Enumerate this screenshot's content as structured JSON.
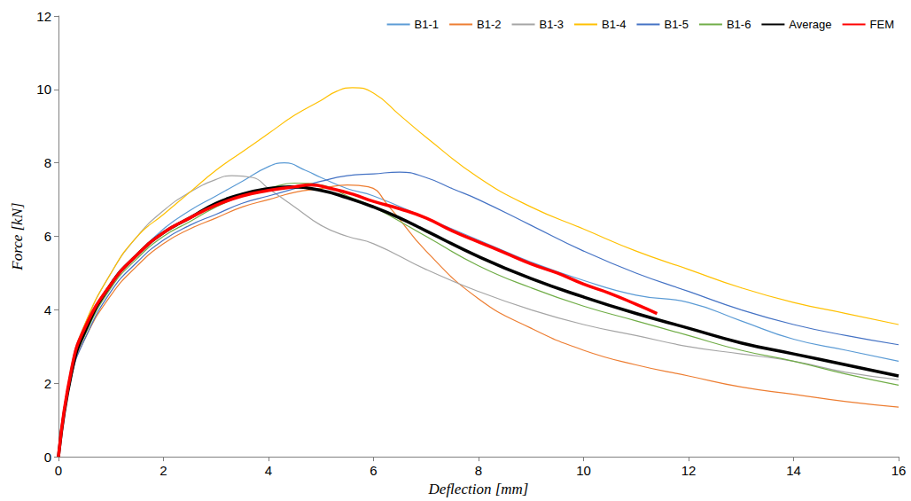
{
  "chart_data": {
    "type": "line",
    "x_label": "Deflection [mm]",
    "y_label": "Force [kN]",
    "xlim": [
      0,
      16
    ],
    "xticks": [
      0,
      2,
      4,
      6,
      8,
      10,
      12,
      14,
      16
    ],
    "ylim": [
      0,
      12
    ],
    "yticks": [
      0,
      2,
      4,
      6,
      8,
      10,
      12
    ],
    "grid": false,
    "legend": "top-right",
    "series": [
      {
        "name": "B1-1",
        "color": "#5b9bd5",
        "x": [
          0,
          0.25,
          0.5,
          1,
          1.5,
          2,
          2.5,
          3,
          3.5,
          4,
          4.3,
          4.7,
          5,
          5.5,
          6,
          7,
          8,
          9,
          10,
          11,
          12,
          13,
          14,
          15,
          16
        ],
        "values": [
          0,
          2.3,
          3.4,
          4.7,
          5.5,
          6.2,
          6.7,
          7.1,
          7.5,
          7.9,
          8.0,
          7.8,
          7.6,
          7.3,
          7.1,
          6.5,
          5.9,
          5.3,
          4.8,
          4.4,
          4.2,
          3.7,
          3.2,
          2.9,
          2.6
        ]
      },
      {
        "name": "B1-2",
        "color": "#ed7d31",
        "x": [
          0,
          0.25,
          0.5,
          1,
          1.5,
          2,
          2.5,
          3,
          3.5,
          4,
          4.5,
          5,
          5.5,
          5.9,
          6.3,
          7,
          8,
          9,
          10,
          11,
          12,
          13,
          14,
          15,
          16
        ],
        "values": [
          0,
          2.2,
          3.2,
          4.4,
          5.2,
          5.8,
          6.2,
          6.5,
          6.8,
          7.0,
          7.2,
          7.3,
          7.4,
          7.35,
          6.8,
          5.6,
          4.3,
          3.5,
          2.9,
          2.5,
          2.2,
          1.9,
          1.7,
          1.5,
          1.35
        ]
      },
      {
        "name": "B1-3",
        "color": "#a5a5a5",
        "x": [
          0,
          0.25,
          0.5,
          1,
          1.5,
          2,
          2.5,
          3,
          3.3,
          3.7,
          4,
          4.5,
          5,
          5.5,
          6,
          7,
          8,
          9,
          10,
          11,
          12,
          13,
          14,
          15,
          16
        ],
        "values": [
          0,
          2.5,
          3.6,
          5.0,
          6.0,
          6.7,
          7.2,
          7.55,
          7.65,
          7.6,
          7.3,
          6.8,
          6.3,
          6.0,
          5.8,
          5.1,
          4.5,
          4.0,
          3.6,
          3.3,
          3.0,
          2.8,
          2.6,
          2.3,
          2.1
        ]
      },
      {
        "name": "B1-4",
        "color": "#ffc000",
        "x": [
          0,
          0.25,
          0.5,
          1,
          1.5,
          2,
          2.5,
          3,
          3.5,
          4,
          4.5,
          5,
          5.3,
          5.6,
          6,
          6.5,
          7,
          8,
          9,
          10,
          11,
          12,
          13,
          14,
          15,
          16
        ],
        "values": [
          0,
          2.4,
          3.6,
          5.0,
          6.0,
          6.6,
          7.2,
          7.8,
          8.3,
          8.8,
          9.3,
          9.7,
          9.95,
          10.05,
          9.9,
          9.3,
          8.7,
          7.6,
          6.8,
          6.2,
          5.6,
          5.1,
          4.6,
          4.2,
          3.9,
          3.6
        ]
      },
      {
        "name": "B1-5",
        "color": "#4472c4",
        "x": [
          0,
          0.25,
          0.5,
          1,
          1.5,
          2,
          2.5,
          3,
          3.5,
          4,
          4.5,
          5,
          5.5,
          6,
          6.5,
          7,
          7.5,
          8,
          9,
          10,
          11,
          12,
          13,
          14,
          15,
          16
        ],
        "values": [
          0,
          2.2,
          3.2,
          4.5,
          5.3,
          5.9,
          6.3,
          6.6,
          6.9,
          7.1,
          7.3,
          7.5,
          7.65,
          7.7,
          7.75,
          7.6,
          7.3,
          7.0,
          6.3,
          5.6,
          5.0,
          4.5,
          4.0,
          3.6,
          3.3,
          3.05
        ]
      },
      {
        "name": "B1-6",
        "color": "#70ad47",
        "x": [
          0,
          0.25,
          0.5,
          1,
          1.5,
          2,
          2.5,
          3,
          3.5,
          4,
          4.5,
          5,
          5.5,
          6,
          7,
          8,
          9,
          10,
          11,
          12,
          13,
          14,
          15,
          16
        ],
        "values": [
          0,
          2.3,
          3.3,
          4.6,
          5.4,
          6.0,
          6.4,
          6.8,
          7.1,
          7.3,
          7.45,
          7.4,
          7.1,
          6.8,
          6.0,
          5.2,
          4.6,
          4.1,
          3.7,
          3.3,
          2.9,
          2.6,
          2.25,
          1.95
        ]
      },
      {
        "name": "Average",
        "color": "#000000",
        "x": [
          0,
          0.25,
          0.5,
          1,
          1.5,
          2,
          2.5,
          3,
          3.5,
          4,
          4.4,
          5,
          5.5,
          6,
          6.5,
          7,
          8,
          9,
          10,
          11,
          12,
          13,
          14,
          15,
          16
        ],
        "values": [
          0,
          2.3,
          3.4,
          4.7,
          5.5,
          6.1,
          6.5,
          6.9,
          7.15,
          7.3,
          7.35,
          7.25,
          7.05,
          6.8,
          6.5,
          6.15,
          5.45,
          4.85,
          4.35,
          3.9,
          3.5,
          3.1,
          2.8,
          2.5,
          2.2
        ]
      },
      {
        "name": "FEM",
        "color": "#ff0000",
        "x": [
          0,
          0.25,
          0.5,
          1,
          1.5,
          2,
          2.5,
          3,
          3.5,
          4,
          4.5,
          4.8,
          5.2,
          5.6,
          6,
          6.5,
          7,
          7.5,
          8,
          8.5,
          9,
          9.5,
          10,
          10.5,
          11,
          11.4
        ],
        "values": [
          0,
          2.4,
          3.5,
          4.7,
          5.5,
          6.1,
          6.5,
          6.85,
          7.1,
          7.25,
          7.35,
          7.4,
          7.3,
          7.15,
          6.95,
          6.75,
          6.5,
          6.15,
          5.85,
          5.55,
          5.25,
          5.0,
          4.7,
          4.45,
          4.15,
          3.9
        ]
      }
    ]
  }
}
